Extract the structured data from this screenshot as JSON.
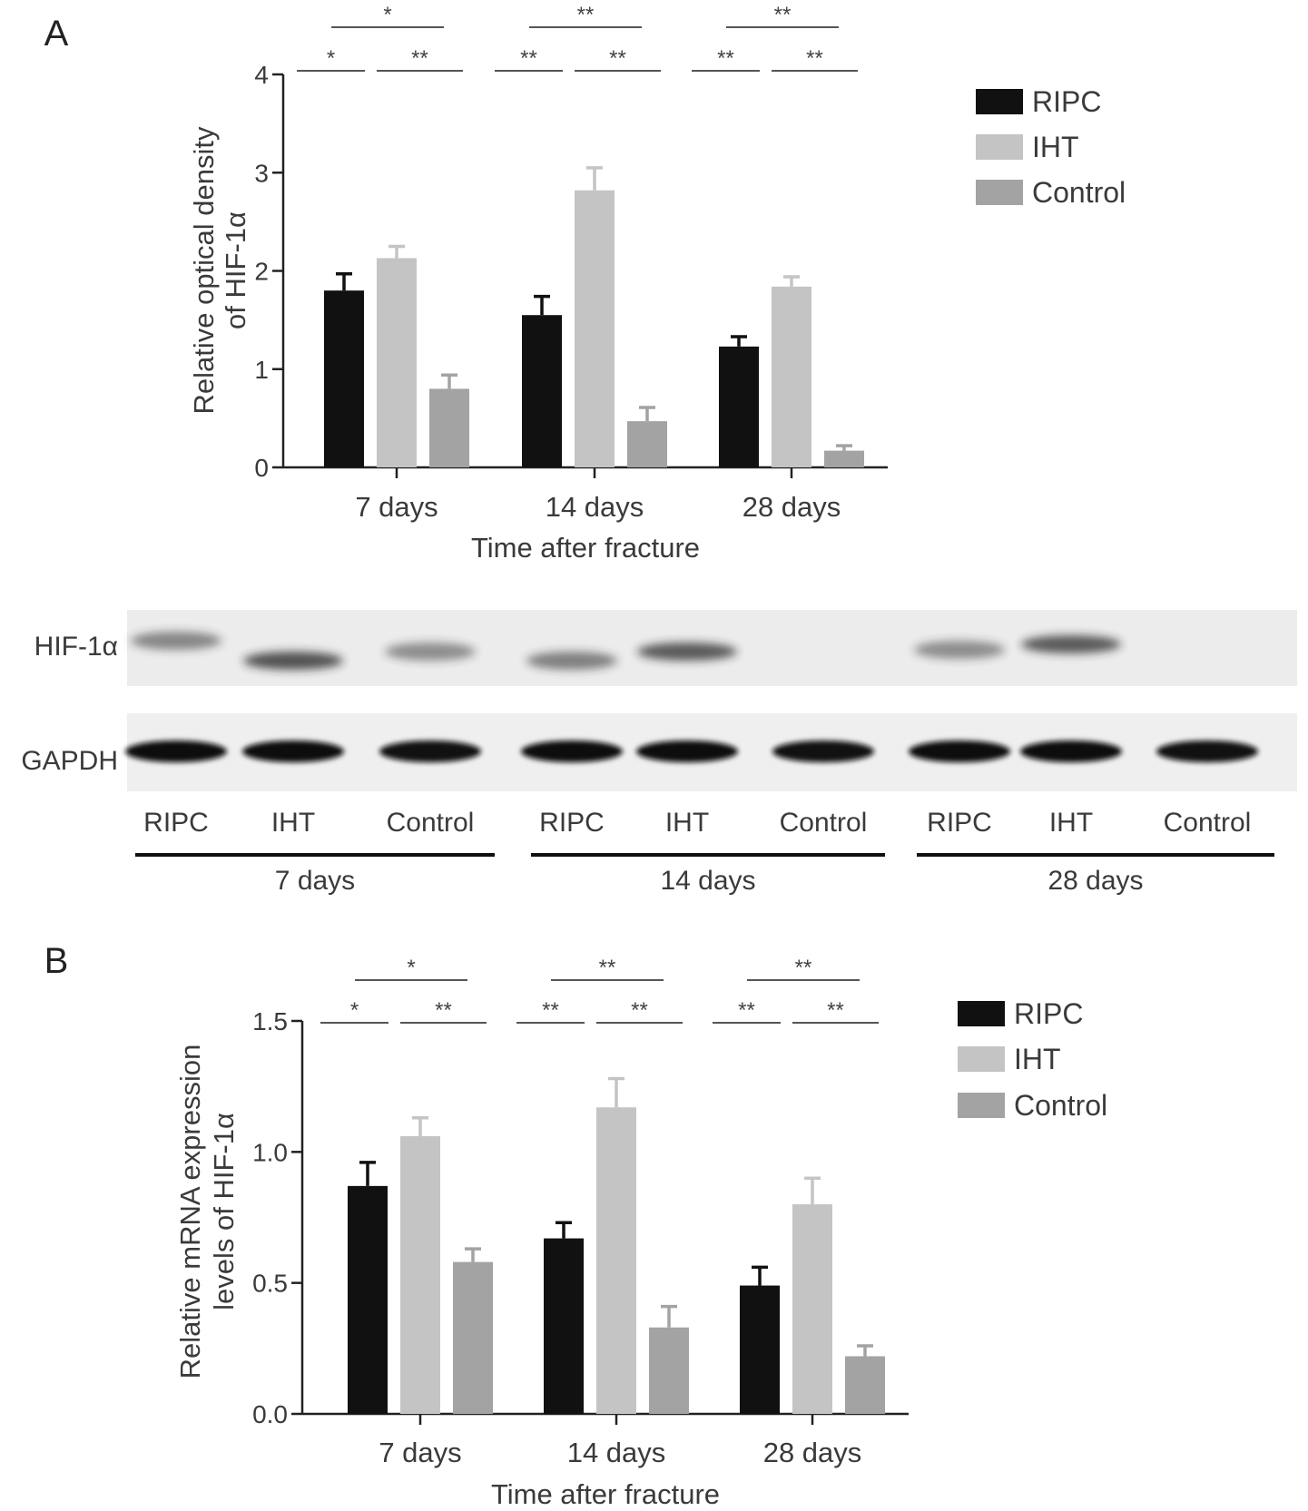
{
  "colors": {
    "RIPC": "#111111",
    "IHT": "#c4c4c4",
    "Control": "#a3a3a3",
    "axis": "#222222",
    "text": "#3a3a3a"
  },
  "chart_data": [
    {
      "panel": "A",
      "type": "bar",
      "xlabel": "Time after fracture",
      "ylabel_lines": [
        "Relative optical density",
        "of HIF-1α"
      ],
      "ylim": [
        0,
        4
      ],
      "yticks": [
        "0",
        "1",
        "2",
        "3",
        "4"
      ],
      "categories": [
        "7 days",
        "14 days",
        "28 days"
      ],
      "legend_position": "top-right",
      "series": [
        {
          "name": "RIPC",
          "values": [
            1.8,
            1.55,
            1.23
          ],
          "errors": [
            0.17,
            0.19,
            0.1
          ]
        },
        {
          "name": "IHT",
          "values": [
            2.13,
            2.82,
            1.84
          ],
          "errors": [
            0.12,
            0.23,
            0.1
          ]
        },
        {
          "name": "Control",
          "values": [
            0.8,
            0.47,
            0.17
          ],
          "errors": [
            0.14,
            0.14,
            0.05
          ]
        }
      ],
      "significance": [
        {
          "group": 0,
          "pair": [
            "RIPC",
            "Control"
          ],
          "label": "*"
        },
        {
          "group": 0,
          "pair": [
            "RIPC",
            "IHT"
          ],
          "label": "*"
        },
        {
          "group": 0,
          "pair": [
            "IHT",
            "Control"
          ],
          "label": "**"
        },
        {
          "group": 1,
          "pair": [
            "RIPC",
            "Control"
          ],
          "label": "**"
        },
        {
          "group": 1,
          "pair": [
            "RIPC",
            "IHT"
          ],
          "label": "**"
        },
        {
          "group": 1,
          "pair": [
            "IHT",
            "Control"
          ],
          "label": "**"
        },
        {
          "group": 2,
          "pair": [
            "RIPC",
            "Control"
          ],
          "label": "**"
        },
        {
          "group": 2,
          "pair": [
            "RIPC",
            "IHT"
          ],
          "label": "**"
        },
        {
          "group": 2,
          "pair": [
            "IHT",
            "Control"
          ],
          "label": "**"
        }
      ]
    },
    {
      "panel": "B",
      "type": "bar",
      "xlabel": "Time after fracture",
      "ylabel_lines": [
        "Relative mRNA expression",
        "levels of HIF-1α"
      ],
      "ylim": [
        0,
        1.5
      ],
      "yticks": [
        "0.0",
        "0.5",
        "1.0",
        "1.5"
      ],
      "categories": [
        "7 days",
        "14 days",
        "28 days"
      ],
      "legend_position": "top-right",
      "series": [
        {
          "name": "RIPC",
          "values": [
            0.87,
            0.67,
            0.49
          ],
          "errors": [
            0.09,
            0.06,
            0.07
          ]
        },
        {
          "name": "IHT",
          "values": [
            1.06,
            1.17,
            0.8
          ],
          "errors": [
            0.07,
            0.11,
            0.1
          ]
        },
        {
          "name": "Control",
          "values": [
            0.58,
            0.33,
            0.22
          ],
          "errors": [
            0.05,
            0.08,
            0.04
          ]
        }
      ],
      "significance": [
        {
          "group": 0,
          "pair": [
            "RIPC",
            "Control"
          ],
          "label": "*"
        },
        {
          "group": 0,
          "pair": [
            "RIPC",
            "IHT"
          ],
          "label": "*"
        },
        {
          "group": 0,
          "pair": [
            "IHT",
            "Control"
          ],
          "label": "**"
        },
        {
          "group": 1,
          "pair": [
            "RIPC",
            "Control"
          ],
          "label": "**"
        },
        {
          "group": 1,
          "pair": [
            "RIPC",
            "IHT"
          ],
          "label": "**"
        },
        {
          "group": 1,
          "pair": [
            "IHT",
            "Control"
          ],
          "label": "**"
        },
        {
          "group": 2,
          "pair": [
            "RIPC",
            "Control"
          ],
          "label": "**"
        },
        {
          "group": 2,
          "pair": [
            "RIPC",
            "IHT"
          ],
          "label": "**"
        },
        {
          "group": 2,
          "pair": [
            "IHT",
            "Control"
          ],
          "label": "**"
        }
      ]
    }
  ],
  "blot": {
    "rows": [
      "HIF-1α",
      "GAPDH"
    ],
    "lanes": [
      "RIPC",
      "IHT",
      "Control",
      "RIPC",
      "IHT",
      "Control",
      "RIPC",
      "IHT",
      "Control"
    ],
    "groups": [
      "7 days",
      "14 days",
      "28 days"
    ],
    "hif_intensity": [
      0.5,
      0.9,
      0.45,
      0.55,
      0.85,
      0.0,
      0.45,
      0.85,
      0.0
    ],
    "gapdh_intensity": [
      1.0,
      1.0,
      0.95,
      1.0,
      1.0,
      0.95,
      1.0,
      1.0,
      0.95
    ]
  }
}
